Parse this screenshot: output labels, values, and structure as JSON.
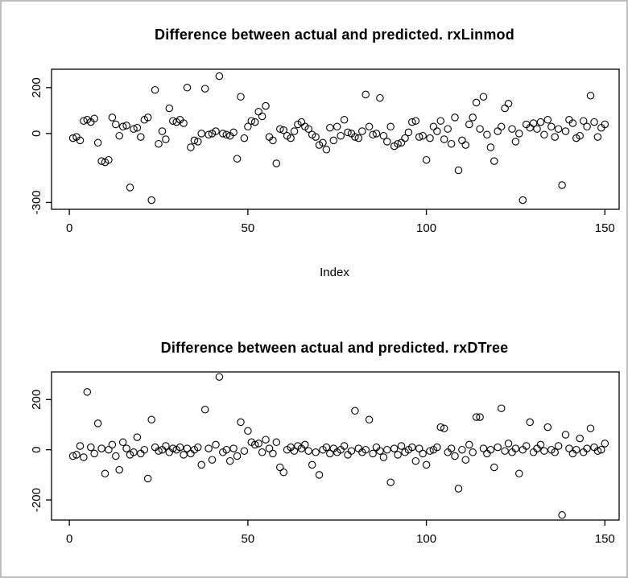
{
  "page": {
    "background": "#ffffff",
    "frame_border_color": "#bdbdbd",
    "plot_color": "#000000"
  },
  "chart_data": [
    {
      "type": "scatter",
      "title": "Difference between actual and predicted. rxLinmod",
      "xlabel": "Index",
      "ylabel": "",
      "marker": "open-circle",
      "grid": false,
      "legend": "none",
      "xlim": [
        -5,
        154
      ],
      "ylim": [
        -330,
        280
      ],
      "x_ticks": [
        0,
        50,
        100,
        150
      ],
      "y_ticks": [
        -300,
        0,
        200
      ],
      "x": "index 1..150",
      "y": [
        -20,
        -15,
        -30,
        55,
        60,
        50,
        65,
        -40,
        -120,
        -125,
        -115,
        70,
        40,
        -10,
        30,
        35,
        -235,
        20,
        25,
        -15,
        60,
        70,
        -290,
        190,
        -45,
        10,
        -25,
        110,
        55,
        50,
        60,
        45,
        200,
        -60,
        -30,
        -35,
        0,
        195,
        -5,
        0,
        10,
        250,
        0,
        -5,
        -10,
        5,
        -110,
        160,
        -20,
        30,
        55,
        50,
        95,
        75,
        120,
        -15,
        -30,
        -130,
        20,
        15,
        -10,
        -20,
        10,
        40,
        50,
        30,
        20,
        -5,
        -15,
        -50,
        -40,
        -70,
        25,
        -30,
        30,
        -10,
        60,
        5,
        0,
        -15,
        -20,
        10,
        170,
        30,
        -5,
        0,
        155,
        -10,
        -35,
        30,
        -55,
        -45,
        -40,
        -20,
        5,
        50,
        55,
        -15,
        -10,
        -115,
        -20,
        30,
        10,
        55,
        -25,
        20,
        -45,
        70,
        -160,
        -30,
        -50,
        40,
        70,
        135,
        20,
        160,
        -5,
        -60,
        -120,
        10,
        30,
        110,
        130,
        20,
        -35,
        0,
        -290,
        40,
        25,
        45,
        20,
        50,
        -5,
        60,
        30,
        -15,
        20,
        -225,
        10,
        60,
        45,
        -20,
        -10,
        55,
        30,
        165,
        50,
        -15,
        25,
        40
      ]
    },
    {
      "type": "scatter",
      "title": "Difference between actual and predicted. rxDTree",
      "xlabel": "",
      "ylabel": "",
      "marker": "open-circle",
      "grid": false,
      "legend": "none",
      "xlim": [
        -5,
        154
      ],
      "ylim": [
        -280,
        310
      ],
      "x_ticks": [
        0,
        50,
        100,
        150
      ],
      "y_ticks": [
        -200,
        0,
        200
      ],
      "x": "index 1..150",
      "y": [
        -25,
        -20,
        15,
        -30,
        230,
        10,
        -15,
        105,
        5,
        -95,
        0,
        20,
        -25,
        -80,
        30,
        5,
        -20,
        -10,
        50,
        -15,
        0,
        -115,
        120,
        10,
        -5,
        0,
        15,
        -10,
        5,
        0,
        10,
        -20,
        5,
        -15,
        0,
        10,
        -60,
        160,
        5,
        -40,
        20,
        290,
        -10,
        0,
        -45,
        5,
        -25,
        110,
        -5,
        75,
        30,
        20,
        25,
        -10,
        40,
        5,
        -15,
        30,
        -70,
        -90,
        0,
        10,
        -5,
        15,
        5,
        20,
        -5,
        -60,
        -10,
        -100,
        0,
        10,
        -15,
        5,
        -10,
        0,
        15,
        -20,
        -5,
        155,
        5,
        -10,
        0,
        120,
        -15,
        10,
        -5,
        -30,
        0,
        -130,
        5,
        -20,
        15,
        -10,
        0,
        10,
        -45,
        5,
        -15,
        -60,
        -5,
        0,
        10,
        90,
        85,
        -10,
        5,
        -25,
        -155,
        0,
        -40,
        20,
        -10,
        130,
        130,
        5,
        -15,
        0,
        -70,
        10,
        165,
        -5,
        25,
        -10,
        5,
        -95,
        0,
        15,
        110,
        -10,
        5,
        20,
        -5,
        90,
        0,
        -10,
        15,
        -260,
        60,
        5,
        -15,
        0,
        45,
        -10,
        5,
        85,
        10,
        -5,
        0,
        25
      ]
    }
  ]
}
